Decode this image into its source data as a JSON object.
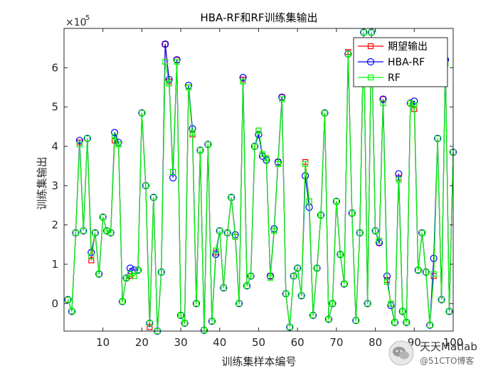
{
  "chart_data": {
    "type": "line",
    "title": "HBA-RF和RF训练集输出",
    "xlabel": "训练集样本编号",
    "ylabel": "训练集输出",
    "exponent_label": "×10",
    "exponent_power": "5",
    "xlim": [
      0,
      100
    ],
    "ylim": [
      -0.7,
      7.0
    ],
    "xticks": [
      10,
      20,
      30,
      40,
      50,
      60,
      70,
      80,
      90,
      100
    ],
    "yticks": [
      0,
      1,
      2,
      3,
      4,
      5,
      6
    ],
    "legend_position": "top-right",
    "grid": false,
    "x": [
      1,
      2,
      3,
      4,
      5,
      6,
      7,
      8,
      9,
      10,
      11,
      12,
      13,
      14,
      15,
      16,
      17,
      18,
      19,
      20,
      21,
      22,
      23,
      24,
      25,
      26,
      27,
      28,
      29,
      30,
      31,
      32,
      33,
      34,
      35,
      36,
      37,
      38,
      39,
      40,
      41,
      42,
      43,
      44,
      45,
      46,
      47,
      48,
      49,
      50,
      51,
      52,
      53,
      54,
      55,
      56,
      57,
      58,
      59,
      60,
      61,
      62,
      63,
      64,
      65,
      66,
      67,
      68,
      69,
      70,
      71,
      72,
      73,
      74,
      75,
      76,
      77,
      78,
      79,
      80,
      81,
      82,
      83,
      84,
      85,
      86,
      87,
      88,
      89,
      90,
      91,
      92,
      93,
      94,
      95,
      96,
      97,
      98,
      99,
      100
    ],
    "series": [
      {
        "name": "期望输出",
        "color": "#ff0000",
        "marker": "square",
        "values": [
          0.1,
          -0.2,
          1.8,
          4.1,
          1.85,
          4.2,
          1.1,
          1.8,
          0.75,
          2.2,
          1.85,
          1.8,
          4.15,
          4.05,
          0.05,
          0.65,
          0.7,
          0.7,
          0.85,
          4.85,
          3.0,
          -0.6,
          2.7,
          -0.7,
          0.8,
          6.6,
          5.65,
          3.35,
          6.2,
          -0.3,
          -0.5,
          5.5,
          4.3,
          0.0,
          3.9,
          -0.68,
          4.05,
          -0.45,
          1.3,
          1.85,
          0.4,
          1.8,
          2.7,
          1.7,
          0.0,
          5.7,
          0.45,
          0.7,
          4.0,
          4.4,
          3.8,
          3.7,
          0.7,
          1.85,
          3.6,
          5.25,
          0.25,
          -0.6,
          0.7,
          0.9,
          0.2,
          3.6,
          2.6,
          -0.3,
          0.9,
          2.25,
          4.85,
          -0.4,
          0.0,
          2.6,
          1.25,
          0.5,
          6.4,
          2.3,
          -0.43,
          1.8,
          6.9,
          0.0,
          6.9,
          1.85,
          1.55,
          5.2,
          0.6,
          0.0,
          -0.48,
          3.2,
          -0.2,
          -0.48,
          5.1,
          4.95,
          0.85,
          1.8,
          0.8,
          -0.55,
          0.7,
          4.2,
          0.1,
          6.15,
          -0.2,
          3.85
        ]
      },
      {
        "name": "HBA-RF",
        "color": "#0000ff",
        "marker": "circle",
        "values": [
          0.1,
          -0.2,
          1.8,
          4.15,
          1.85,
          4.2,
          1.3,
          1.8,
          0.75,
          2.2,
          1.85,
          1.8,
          4.35,
          4.1,
          0.05,
          0.65,
          0.9,
          0.85,
          0.85,
          4.85,
          3.0,
          -0.5,
          2.7,
          -0.7,
          0.8,
          6.6,
          5.7,
          3.2,
          6.2,
          -0.3,
          -0.5,
          5.55,
          4.45,
          0.0,
          3.9,
          -0.68,
          4.05,
          -0.45,
          1.25,
          1.85,
          0.4,
          1.8,
          2.7,
          1.75,
          0.0,
          5.75,
          0.45,
          0.7,
          4.0,
          4.3,
          3.75,
          3.65,
          0.7,
          1.9,
          3.6,
          5.25,
          0.25,
          -0.6,
          0.7,
          0.9,
          0.2,
          3.25,
          2.45,
          -0.3,
          0.9,
          2.25,
          4.85,
          -0.4,
          0.0,
          2.6,
          1.25,
          0.5,
          6.35,
          2.3,
          -0.43,
          1.8,
          6.9,
          0.0,
          6.9,
          1.85,
          1.55,
          5.2,
          0.7,
          -0.05,
          -0.48,
          3.3,
          -0.2,
          -0.48,
          5.1,
          5.15,
          0.85,
          1.8,
          0.8,
          -0.55,
          1.15,
          4.2,
          0.1,
          6.2,
          -0.2,
          3.85
        ]
      },
      {
        "name": "RF",
        "color": "#00ff00",
        "marker": "square",
        "values": [
          0.1,
          -0.2,
          1.8,
          4.05,
          1.85,
          4.2,
          1.2,
          1.8,
          0.75,
          2.2,
          1.85,
          1.8,
          4.25,
          4.05,
          0.05,
          0.65,
          0.75,
          0.7,
          0.85,
          4.85,
          3.0,
          -0.5,
          2.7,
          -0.7,
          0.8,
          6.15,
          5.6,
          3.35,
          6.15,
          -0.3,
          -0.5,
          5.5,
          4.35,
          0.0,
          3.9,
          -0.68,
          4.05,
          -0.45,
          1.35,
          1.85,
          0.4,
          1.8,
          2.7,
          1.7,
          0.0,
          5.65,
          0.45,
          0.7,
          4.0,
          4.4,
          3.8,
          3.7,
          0.65,
          1.85,
          3.55,
          5.2,
          0.25,
          -0.6,
          0.7,
          0.9,
          0.2,
          3.55,
          2.6,
          -0.3,
          0.9,
          2.25,
          4.85,
          -0.4,
          0.0,
          2.6,
          1.25,
          0.5,
          6.35,
          2.3,
          -0.43,
          1.8,
          6.9,
          0.0,
          6.9,
          1.85,
          1.6,
          5.1,
          0.55,
          0.0,
          -0.48,
          3.15,
          -0.2,
          -0.48,
          5.1,
          5.05,
          0.85,
          1.8,
          0.8,
          -0.55,
          0.75,
          4.2,
          0.1,
          6.1,
          -0.2,
          3.85
        ]
      }
    ]
  },
  "watermark": {
    "line1": "天天Matlab",
    "line2": "@51CTO博客"
  }
}
